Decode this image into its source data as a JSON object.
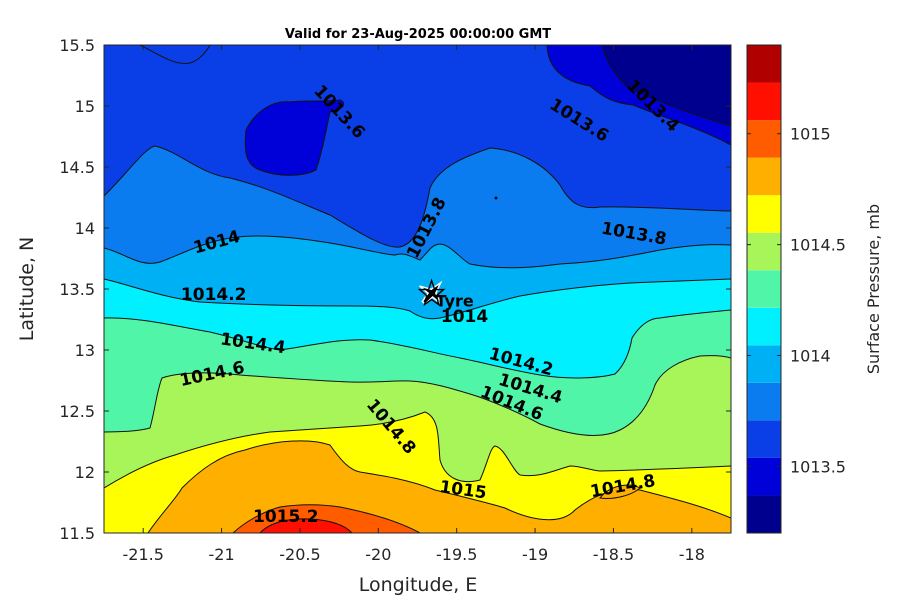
{
  "chart_data": {
    "type": "contour",
    "title": "Valid for 23-Aug-2025 00:00:00 GMT",
    "xlabel": "Longitude, E",
    "ylabel": "Latitude, N",
    "xlim": [
      -21.75,
      -17.75
    ],
    "ylim": [
      11.5,
      15.5
    ],
    "xticks": [
      -21.5,
      -21,
      -20.5,
      -20,
      -19.5,
      -19,
      -18.5,
      -18
    ],
    "xtick_labels": [
      "-21.5",
      "-21",
      "-20.5",
      "-20",
      "-19.5",
      "-19",
      "-18.5",
      "-18"
    ],
    "yticks": [
      11.5,
      12,
      12.5,
      13,
      13.5,
      14,
      14.5,
      15,
      15.5
    ],
    "ytick_labels": [
      "11.5",
      "12",
      "12.5",
      "13",
      "13.5",
      "14",
      "14.5",
      "15",
      "15.5"
    ],
    "colorbar": {
      "label": "Surface Pressure, mb",
      "range": [
        1013.2,
        1015.4
      ],
      "ticks": [
        1013.5,
        1014,
        1014.5,
        1015
      ],
      "tick_labels": [
        "1013.5",
        "1014",
        "1014.5",
        "1015"
      ],
      "levels": [
        1013.2,
        1013.3,
        1013.4,
        1013.5,
        1013.6,
        1013.7,
        1013.8,
        1013.9,
        1014.0,
        1014.1,
        1014.2,
        1014.3,
        1014.4,
        1014.5,
        1014.6,
        1014.7,
        1014.8,
        1014.9,
        1015.0,
        1015.1,
        1015.2,
        1015.3,
        1015.4
      ],
      "colors": [
        "#00008f",
        "#0000d9",
        "#0a3fe8",
        "#0a7cf0",
        "#00b0f5",
        "#00f0ff",
        "#50f5a8",
        "#a8f55a",
        "#ffff00",
        "#ffaf00",
        "#ff5c00",
        "#ff0f00",
        "#b00000"
      ]
    },
    "contour_labels": [
      {
        "text": "1013.6",
        "lon": -20.25,
        "lat": 14.95,
        "angle": 47
      },
      {
        "text": "1013.4",
        "lon": -18.25,
        "lat": 15.0,
        "angle": 45
      },
      {
        "text": "1013.6",
        "lon": -18.72,
        "lat": 14.88,
        "angle": 32
      },
      {
        "text": "1013.8",
        "lon": -19.69,
        "lat": 14.0,
        "angle": -63
      },
      {
        "text": "1013.8",
        "lon": -18.37,
        "lat": 13.95,
        "angle": 10
      },
      {
        "text": "1014",
        "lon": -21.03,
        "lat": 13.88,
        "angle": -15
      },
      {
        "text": "1014.2",
        "lon": -21.05,
        "lat": 13.45,
        "angle": 0
      },
      {
        "text": "1014",
        "lon": -19.45,
        "lat": 13.27,
        "angle": 0
      },
      {
        "text": "1014.4",
        "lon": -20.8,
        "lat": 13.05,
        "angle": 8
      },
      {
        "text": "1014.2",
        "lon": -19.09,
        "lat": 12.9,
        "angle": 15
      },
      {
        "text": "1014.6",
        "lon": -21.06,
        "lat": 12.8,
        "angle": -12
      },
      {
        "text": "1014.4",
        "lon": -19.03,
        "lat": 12.68,
        "angle": 17
      },
      {
        "text": "1014.6",
        "lon": -19.15,
        "lat": 12.56,
        "angle": 22
      },
      {
        "text": "1014.8",
        "lon": -19.92,
        "lat": 12.37,
        "angle": 50
      },
      {
        "text": "1015",
        "lon": -19.46,
        "lat": 11.85,
        "angle": 8
      },
      {
        "text": "1014.8",
        "lon": -18.44,
        "lat": 11.88,
        "angle": -10
      },
      {
        "text": "1015.2",
        "lon": -20.59,
        "lat": 11.63,
        "angle": 0
      }
    ],
    "site": {
      "name": "Tyre",
      "lon": -19.66,
      "lat": 13.43
    }
  }
}
